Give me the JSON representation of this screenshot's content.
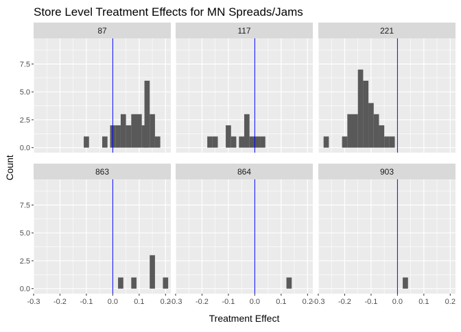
{
  "chart_data": {
    "type": "bar",
    "title": "Store Level Treatment Effects for MN Spreads/Jams",
    "xlabel": "Treatment Effect",
    "ylabel": "Count",
    "xlim": [
      -0.3,
      0.22
    ],
    "ylim": [
      -0.45,
      9.8
    ],
    "x_ticks": [
      -0.3,
      -0.2,
      -0.1,
      0.0,
      0.1,
      0.2
    ],
    "x_tick_labels": [
      "-0.3",
      "-0.2",
      "-0.1",
      "0.0",
      "0.1",
      "0.2"
    ],
    "y_ticks": [
      0,
      2.5,
      5,
      7.5
    ],
    "y_tick_labels": [
      "0.0",
      "2.5",
      "5.0",
      "7.5"
    ],
    "bin_width": 0.02,
    "vline_x": 0,
    "grid": true,
    "colors": {
      "bar": "#595959",
      "vline": "#0000ff",
      "panel_bg": "#ebebeb",
      "strip_bg": "#d9d9d9",
      "grid": "#ffffff"
    },
    "panels": [
      {
        "label": "87",
        "bars": [
          {
            "x": -0.1,
            "count": 1
          },
          {
            "x": -0.03,
            "count": 1
          },
          {
            "x": 0.0,
            "count": 2
          },
          {
            "x": 0.02,
            "count": 2
          },
          {
            "x": 0.04,
            "count": 3
          },
          {
            "x": 0.06,
            "count": 2
          },
          {
            "x": 0.08,
            "count": 3
          },
          {
            "x": 0.1,
            "count": 3
          },
          {
            "x": 0.12,
            "count": 2
          },
          {
            "x": 0.13,
            "count": 6
          },
          {
            "x": 0.15,
            "count": 3
          },
          {
            "x": 0.17,
            "count": 1
          }
        ]
      },
      {
        "label": "117",
        "bars": [
          {
            "x": -0.17,
            "count": 1
          },
          {
            "x": -0.15,
            "count": 1
          },
          {
            "x": -0.1,
            "count": 2
          },
          {
            "x": -0.08,
            "count": 1
          },
          {
            "x": -0.05,
            "count": 1
          },
          {
            "x": -0.03,
            "count": 3
          },
          {
            "x": -0.01,
            "count": 1
          },
          {
            "x": 0.01,
            "count": 1
          },
          {
            "x": 0.03,
            "count": 1
          }
        ]
      },
      {
        "label": "221",
        "bars": [
          {
            "x": -0.27,
            "count": 1
          },
          {
            "x": -0.2,
            "count": 1
          },
          {
            "x": -0.18,
            "count": 3
          },
          {
            "x": -0.16,
            "count": 3
          },
          {
            "x": -0.14,
            "count": 7
          },
          {
            "x": -0.12,
            "count": 6
          },
          {
            "x": -0.1,
            "count": 4
          },
          {
            "x": -0.08,
            "count": 3
          },
          {
            "x": -0.06,
            "count": 2
          },
          {
            "x": -0.04,
            "count": 1
          },
          {
            "x": -0.02,
            "count": 1
          }
        ]
      },
      {
        "label": "863",
        "bars": [
          {
            "x": 0.03,
            "count": 1
          },
          {
            "x": 0.08,
            "count": 1
          },
          {
            "x": 0.15,
            "count": 3
          },
          {
            "x": 0.2,
            "count": 1
          }
        ]
      },
      {
        "label": "864",
        "bars": [
          {
            "x": 0.13,
            "count": 1
          }
        ]
      },
      {
        "label": "903",
        "bars": [
          {
            "x": 0.03,
            "count": 1
          }
        ]
      }
    ]
  }
}
